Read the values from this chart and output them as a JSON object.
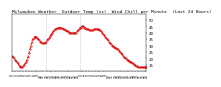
{
  "title": "Milwaukee Weather  Outdoor Temp (vs)  Wind Chill per Minute  (Last 24 Hours)",
  "bg_color": "#ffffff",
  "line_color": "#dd0000",
  "line_style": "--",
  "line_width": 0.6,
  "marker": ".",
  "marker_size": 0.8,
  "ylim": [
    10,
    55
  ],
  "xlim": [
    0,
    143
  ],
  "yticks": [
    15,
    20,
    25,
    30,
    35,
    40,
    45,
    50
  ],
  "ytick_labels": [
    "15",
    "20",
    "25",
    "30",
    "35",
    "40",
    "45",
    "50"
  ],
  "vline_positions": [
    36,
    72
  ],
  "vline_color": "#999999",
  "vline_style": ":",
  "temp_data": [
    22,
    21,
    20,
    19,
    18,
    17,
    16,
    15,
    14,
    13,
    13,
    13,
    14,
    15,
    16,
    17,
    19,
    21,
    24,
    27,
    30,
    33,
    35,
    36,
    37,
    37,
    37,
    36,
    35,
    34,
    33,
    33,
    32,
    32,
    32,
    32,
    33,
    34,
    35,
    36,
    37,
    38,
    39,
    40,
    41,
    42,
    43,
    43,
    44,
    44,
    44,
    44,
    44,
    44,
    43,
    43,
    42,
    42,
    41,
    41,
    41,
    40,
    40,
    40,
    40,
    40,
    40,
    40,
    40,
    41,
    42,
    43,
    44,
    44,
    45,
    45,
    45,
    44,
    44,
    43,
    43,
    43,
    42,
    42,
    42,
    42,
    42,
    43,
    43,
    43,
    43,
    43,
    43,
    42,
    42,
    41,
    40,
    39,
    38,
    37,
    36,
    35,
    34,
    33,
    32,
    31,
    30,
    30,
    29,
    29,
    28,
    28,
    27,
    27,
    26,
    25,
    24,
    23,
    22,
    21,
    20,
    20,
    19,
    19,
    18,
    18,
    17,
    17,
    16,
    16,
    15,
    15,
    14,
    14,
    13,
    13,
    13,
    13,
    13,
    13,
    13,
    13,
    13,
    13
  ],
  "title_fontsize": 3.2,
  "tick_fontsize": 2.8,
  "xtick_fontsize": 2.2,
  "spine_color": "#000000",
  "num_xticks": 48
}
